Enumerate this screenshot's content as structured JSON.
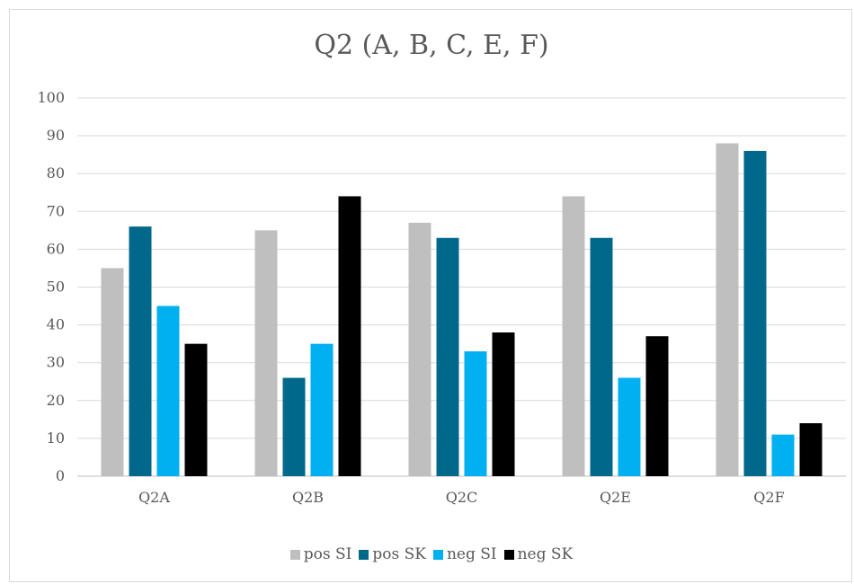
{
  "chart_data": {
    "type": "bar",
    "title": "Q2 (A, B, C, E, F)",
    "categories": [
      "Q2A",
      "Q2B",
      "Q2C",
      "Q2E",
      "Q2F"
    ],
    "series": [
      {
        "name": "pos SI",
        "color": "#bfbfbf",
        "values": [
          55,
          65,
          67,
          74,
          88
        ]
      },
      {
        "name": "pos SK",
        "color": "#00688b",
        "values": [
          66,
          26,
          63,
          63,
          86
        ]
      },
      {
        "name": "neg SI",
        "color": "#00b0f0",
        "values": [
          45,
          35,
          33,
          26,
          11
        ]
      },
      {
        "name": "neg SK",
        "color": "#000000",
        "values": [
          35,
          74,
          38,
          37,
          14
        ]
      }
    ],
    "ylim": [
      0,
      100
    ],
    "yticks": [
      0,
      10,
      20,
      30,
      40,
      50,
      60,
      70,
      80,
      90,
      100
    ],
    "xlabel": "",
    "ylabel": "",
    "grid": true,
    "legend_position": "bottom"
  }
}
